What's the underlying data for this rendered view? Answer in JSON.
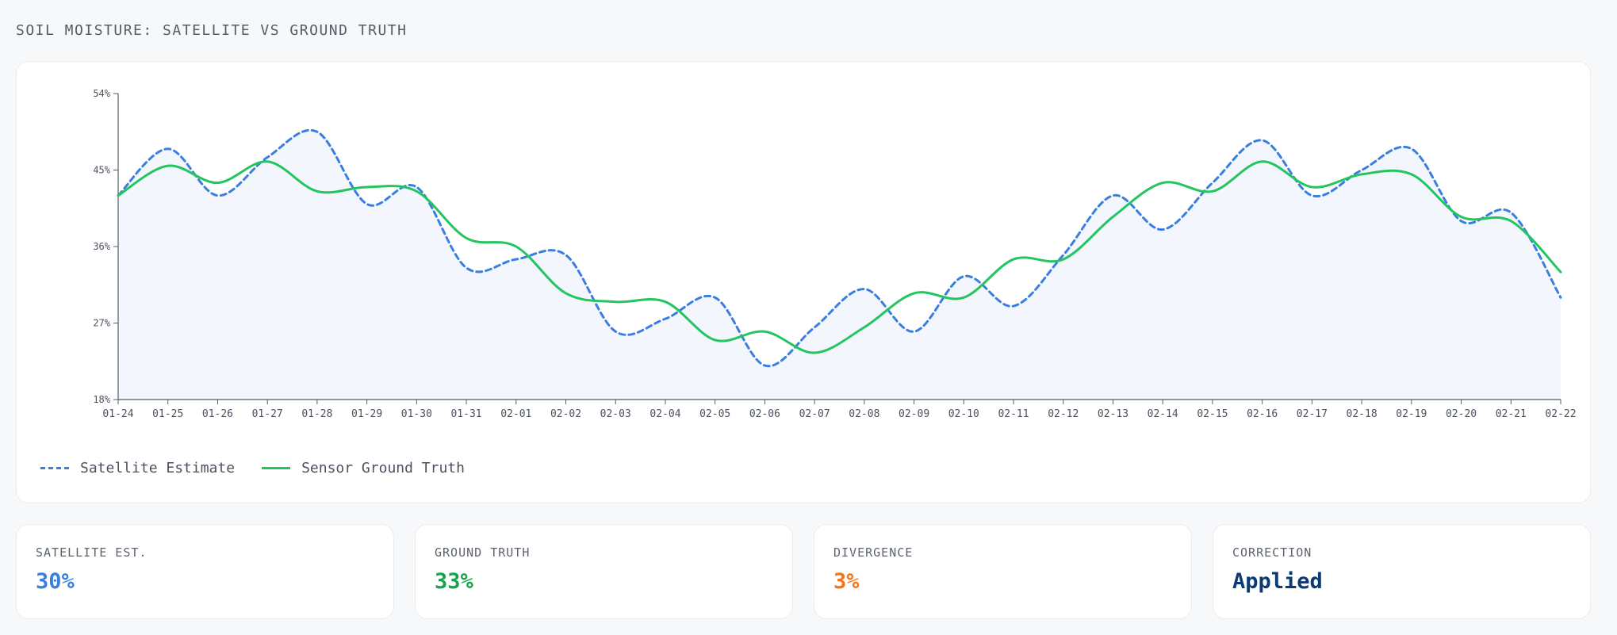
{
  "page": {
    "title": "SOIL MOISTURE: SATELLITE VS GROUND TRUTH"
  },
  "colors": {
    "satellite": "#3a7fdf",
    "ground_truth": "#22c55e",
    "area_fill": "#f3f6fd",
    "axis": "#555c68",
    "divergence": "#f97316",
    "correction": "#0b3a75"
  },
  "chart_data": {
    "type": "line",
    "title": "SOIL MOISTURE: SATELLITE VS GROUND TRUTH",
    "x": [
      "01-24",
      "01-25",
      "01-26",
      "01-27",
      "01-28",
      "01-29",
      "01-30",
      "01-31",
      "02-01",
      "02-02",
      "02-03",
      "02-04",
      "02-05",
      "02-06",
      "02-07",
      "02-08",
      "02-09",
      "02-10",
      "02-11",
      "02-12",
      "02-13",
      "02-14",
      "02-15",
      "02-16",
      "02-17",
      "02-18",
      "02-19",
      "02-20",
      "02-21",
      "02-22"
    ],
    "yticks": [
      "18%",
      "27%",
      "36%",
      "45%",
      "54%"
    ],
    "ylim": [
      18,
      54
    ],
    "series": [
      {
        "name": "Satellite Estimate",
        "style": "dashed",
        "values": [
          42,
          47.5,
          42,
          46.5,
          49.5,
          41,
          43,
          33.5,
          34.5,
          35,
          26,
          27.5,
          30,
          22,
          26.5,
          31,
          26,
          32.5,
          29,
          35,
          42,
          38,
          43.5,
          48.5,
          42,
          45,
          47.5,
          39,
          40,
          30
        ]
      },
      {
        "name": "Sensor Ground Truth",
        "style": "solid",
        "values": [
          42,
          45.5,
          43.5,
          46,
          42.5,
          43,
          42.5,
          37,
          36,
          30.5,
          29.5,
          29.5,
          25,
          26,
          23.5,
          26.5,
          30.5,
          30,
          34.5,
          34.5,
          39.5,
          43.5,
          42.5,
          46,
          43,
          44.5,
          44.5,
          39.5,
          39,
          33
        ]
      }
    ],
    "grid": false,
    "legend_position": "bottom-left"
  },
  "legend": {
    "satellite": "Satellite Estimate",
    "ground_truth": "Sensor Ground Truth"
  },
  "stats": [
    {
      "label": "SATELLITE EST.",
      "value": "30%",
      "color": "#3a7fdf"
    },
    {
      "label": "GROUND TRUTH",
      "value": "33%",
      "color": "#16a34a"
    },
    {
      "label": "DIVERGENCE",
      "value": "3%",
      "color": "#f97316"
    },
    {
      "label": "CORRECTION",
      "value": "Applied",
      "color": "#0b3a75"
    }
  ]
}
